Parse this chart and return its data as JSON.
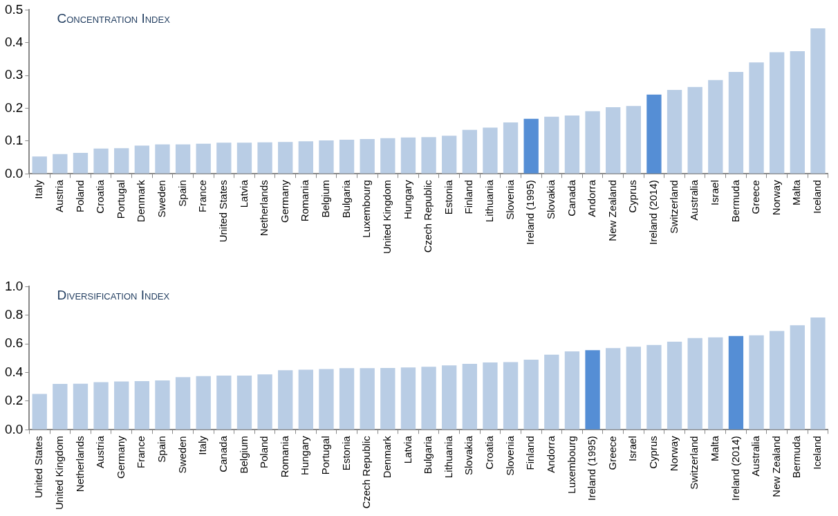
{
  "chart_data": [
    {
      "type": "bar",
      "title": "Concentration Index",
      "categories": [
        "Italy",
        "Austria",
        "Poland",
        "Croatia",
        "Portugal",
        "Denmark",
        "Sweden",
        "Spain",
        "France",
        "United States",
        "Latvia",
        "Netherlands",
        "Germany",
        "Romania",
        "Belgium",
        "Bulgaria",
        "Luxembourg",
        "United Kingdom",
        "Hungary",
        "Czech Republic",
        "Estonia",
        "Finland",
        "Lithuania",
        "Slovenia",
        "Ireland (1995)",
        "Slovakia",
        "Canada",
        "Andorra",
        "New Zealand",
        "Cyprus",
        "Ireland (2014)",
        "Switzerland",
        "Australia",
        "Israel",
        "Bermuda",
        "Greece",
        "Norway",
        "Malta",
        "Iceland"
      ],
      "values": [
        0.053,
        0.06,
        0.064,
        0.077,
        0.078,
        0.086,
        0.09,
        0.09,
        0.092,
        0.095,
        0.095,
        0.096,
        0.097,
        0.099,
        0.102,
        0.104,
        0.106,
        0.109,
        0.111,
        0.112,
        0.116,
        0.134,
        0.141,
        0.157,
        0.168,
        0.174,
        0.178,
        0.191,
        0.203,
        0.207,
        0.242,
        0.256,
        0.265,
        0.286,
        0.311,
        0.34,
        0.371,
        0.374,
        0.444
      ],
      "colors": [
        "#b9cde5",
        "#b9cde5",
        "#b9cde5",
        "#b9cde5",
        "#b9cde5",
        "#b9cde5",
        "#b9cde5",
        "#b9cde5",
        "#b9cde5",
        "#b9cde5",
        "#b9cde5",
        "#b9cde5",
        "#b9cde5",
        "#b9cde5",
        "#b9cde5",
        "#b9cde5",
        "#b9cde5",
        "#b9cde5",
        "#b9cde5",
        "#b9cde5",
        "#b9cde5",
        "#b9cde5",
        "#b9cde5",
        "#b9cde5",
        "#558ed5",
        "#b9cde5",
        "#b9cde5",
        "#b9cde5",
        "#b9cde5",
        "#b9cde5",
        "#558ed5",
        "#b9cde5",
        "#b9cde5",
        "#b9cde5",
        "#b9cde5",
        "#b9cde5",
        "#b9cde5",
        "#b9cde5",
        "#b9cde5"
      ],
      "ylim": [
        0,
        0.5
      ],
      "yticks": [
        {
          "value": 0,
          "label": "0.0"
        },
        0.1,
        0.2,
        0.3,
        0.4,
        0.5
      ],
      "grid": false,
      "legend": false
    },
    {
      "type": "bar",
      "title": "Diversification Index",
      "categories": [
        "United States",
        "United Kingdom",
        "Netherlands",
        "Austria",
        "Germany",
        "France",
        "Spain",
        "Sweden",
        "Italy",
        "Canada",
        "Belgium",
        "Poland",
        "Romania",
        "Hungary",
        "Portugal",
        "Estonia",
        "Czech Republic",
        "Denmark",
        "Latvia",
        "Bulgaria",
        "Lithuania",
        "Slovakia",
        "Croatia",
        "Slovenia",
        "Finland",
        "Andorra",
        "Luxembourg",
        "Ireland (1995)",
        "Greece",
        "Israel",
        "Cyprus",
        "Norway",
        "Switzerland",
        "Malta",
        "Ireland (2014)",
        "Australia",
        "New Zealand",
        "Bermuda",
        "Iceland"
      ],
      "values": [
        0.25,
        0.32,
        0.322,
        0.333,
        0.337,
        0.34,
        0.345,
        0.368,
        0.375,
        0.378,
        0.378,
        0.387,
        0.416,
        0.42,
        0.424,
        0.43,
        0.43,
        0.432,
        0.435,
        0.44,
        0.45,
        0.46,
        0.47,
        0.473,
        0.49,
        0.525,
        0.548,
        0.556,
        0.571,
        0.58,
        0.592,
        0.615,
        0.64,
        0.645,
        0.655,
        0.66,
        0.69,
        0.73,
        0.785
      ],
      "colors": [
        "#b9cde5",
        "#b9cde5",
        "#b9cde5",
        "#b9cde5",
        "#b9cde5",
        "#b9cde5",
        "#b9cde5",
        "#b9cde5",
        "#b9cde5",
        "#b9cde5",
        "#b9cde5",
        "#b9cde5",
        "#b9cde5",
        "#b9cde5",
        "#b9cde5",
        "#b9cde5",
        "#b9cde5",
        "#b9cde5",
        "#b9cde5",
        "#b9cde5",
        "#b9cde5",
        "#b9cde5",
        "#b9cde5",
        "#b9cde5",
        "#b9cde5",
        "#b9cde5",
        "#b9cde5",
        "#558ed5",
        "#b9cde5",
        "#b9cde5",
        "#b9cde5",
        "#b9cde5",
        "#b9cde5",
        "#b9cde5",
        "#558ed5",
        "#b9cde5",
        "#b9cde5",
        "#b9cde5",
        "#b9cde5"
      ],
      "ylim": [
        0,
        1
      ],
      "yticks": [
        {
          "value": 0,
          "label": "0.0"
        },
        {
          "value": 0.2,
          "label": "0.2"
        },
        {
          "value": 0.4,
          "label": "0.4"
        },
        {
          "value": 0.6,
          "label": "0.6"
        },
        {
          "value": 0.8,
          "label": "0.8"
        },
        {
          "value": 1,
          "label": "1.0"
        }
      ],
      "grid": false,
      "legend": false
    }
  ]
}
